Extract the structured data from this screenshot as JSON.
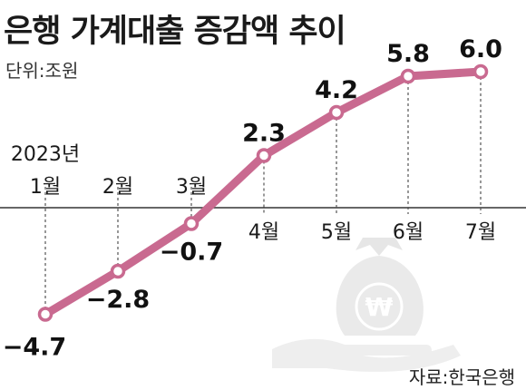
{
  "chart_data": {
    "type": "line",
    "title": "은행 가계대출 증감액 추이",
    "unit_label": "단위:조원",
    "source": "자료:한국은행",
    "year_label": "2023년",
    "categories": [
      "1월",
      "2월",
      "3월",
      "4월",
      "5월",
      "6월",
      "7월"
    ],
    "values": [
      -4.7,
      -2.8,
      -0.7,
      2.3,
      4.2,
      5.8,
      6.0
    ],
    "value_labels": [
      "−4.7",
      "−2.8",
      "−0.7",
      "2.3",
      "4.2",
      "5.8",
      "6.0"
    ],
    "line_color": "#c96a90",
    "zero_line": true,
    "ylim": [
      -5.5,
      6.5
    ]
  }
}
